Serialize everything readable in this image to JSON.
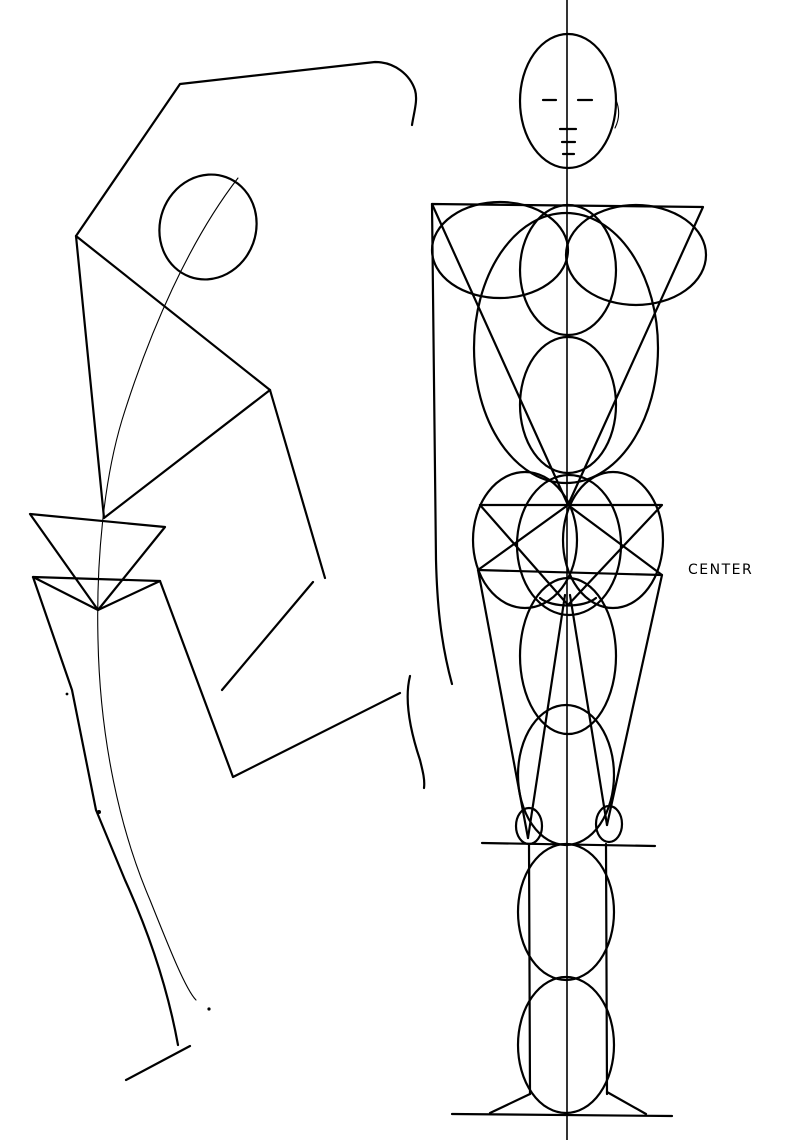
{
  "diagram": {
    "labels": {
      "center": "CENTER"
    },
    "panels": [
      {
        "name": "gesture-stick-figure"
      },
      {
        "name": "front-construction-figure"
      }
    ]
  }
}
